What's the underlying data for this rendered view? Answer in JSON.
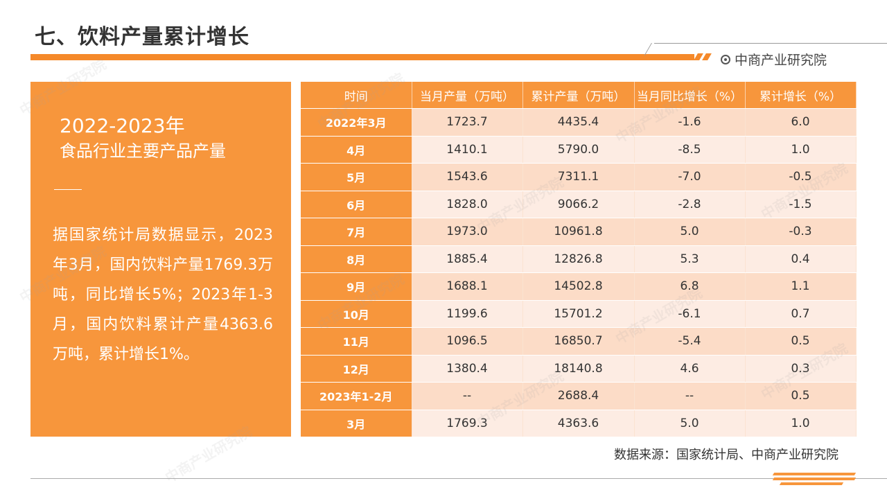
{
  "header": {
    "title": "七、饮料产量累计增长",
    "brand": "中商产业研究院"
  },
  "panel": {
    "year": "2022-2023年",
    "subtitle": "食品行业主要产品产量",
    "body": "据国家统计局数据显示，2023年3月，国内饮料产量1769.3万吨，同比增长5%；2023年1-3月，国内饮料累计产量4363.6万吨，累计增长1%。"
  },
  "table": {
    "columns": [
      "时间",
      "当月产量（万吨）",
      "累计产量（万吨）",
      "当月同比增长（%）",
      "累计增长（%）"
    ],
    "rows": [
      [
        "2022年3月",
        "1723.7",
        "4435.4",
        "-1.6",
        "6.0"
      ],
      [
        "4月",
        "1410.1",
        "5790.0",
        "-8.5",
        "1.0"
      ],
      [
        "5月",
        "1543.6",
        "7311.1",
        "-7.0",
        "-0.5"
      ],
      [
        "6月",
        "1828.0",
        "9066.2",
        "-2.8",
        "-1.5"
      ],
      [
        "7月",
        "1973.0",
        "10961.8",
        "5.0",
        "-0.3"
      ],
      [
        "8月",
        "1885.4",
        "12826.8",
        "5.3",
        "0.4"
      ],
      [
        "9月",
        "1688.1",
        "14502.8",
        "6.8",
        "1.1"
      ],
      [
        "10月",
        "1199.6",
        "15701.2",
        "-6.1",
        "0.7"
      ],
      [
        "11月",
        "1096.5",
        "16850.7",
        "-5.4",
        "0.5"
      ],
      [
        "12月",
        "1380.4",
        "18140.8",
        "4.6",
        "0.3"
      ],
      [
        "2023年1-2月",
        "--",
        "2688.4",
        "--",
        "0.5"
      ],
      [
        "3月",
        "1769.3",
        "4363.6",
        "5.0",
        "1.0"
      ]
    ]
  },
  "footer": {
    "source": "数据来源：国家统计局、中商产业研究院"
  },
  "watermark": "中商产业研究院",
  "colors": {
    "accent": "#f7963c",
    "row_dark": "#fcdcc7",
    "row_light": "#fdece3"
  }
}
